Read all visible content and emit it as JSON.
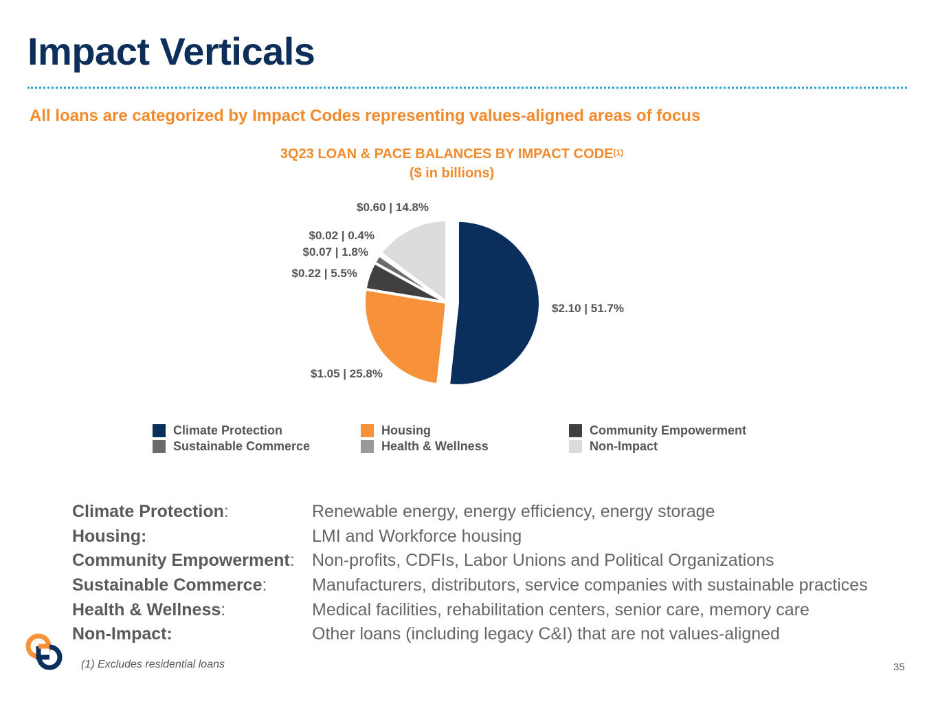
{
  "slide": {
    "title": "Impact Verticals",
    "subtitle": "All loans are categorized by Impact Codes representing values-aligned areas of focus",
    "chart_title_main": "3Q23 LOAN & PACE BALANCES BY IMPACT CODE",
    "chart_title_sup": "(1)",
    "chart_title_units": "($ in billions)",
    "footnote": "(1) Excludes residential loans",
    "page_number": "35"
  },
  "chart_data": {
    "type": "pie",
    "title": "3Q23 LOAN & PACE BALANCES BY IMPACT CODE",
    "subtitle": "($ in billions)",
    "unit": "$ billions",
    "slices": [
      {
        "name": "Climate Protection",
        "value": 2.1,
        "percent": 51.7,
        "label": "$2.10  |  51.7%",
        "color": "#0b2f5c",
        "exploded": true
      },
      {
        "name": "Housing",
        "value": 1.05,
        "percent": 25.8,
        "label": "$1.05  |  25.8%",
        "color": "#f7923a",
        "exploded": false
      },
      {
        "name": "Community Empowerment",
        "value": 0.22,
        "percent": 5.5,
        "label": "$0.22  |  5.5%",
        "color": "#404040",
        "exploded": false
      },
      {
        "name": "Sustainable Commerce",
        "value": 0.07,
        "percent": 1.8,
        "label": "$0.07  |  1.8%",
        "color": "#6b6b6b",
        "exploded": false
      },
      {
        "name": "Health & Wellness",
        "value": 0.02,
        "percent": 0.4,
        "label": "$0.02  |  0.4%",
        "color": "#9a9a9a",
        "exploded": false
      },
      {
        "name": "Non-Impact",
        "value": 0.6,
        "percent": 14.8,
        "label": "$0.60  |  14.8%",
        "color": "#dcdcdc",
        "exploded": false
      }
    ],
    "legend": {
      "placement": "bottom",
      "entries": [
        {
          "label": "Climate Protection",
          "color": "#0b2f5c"
        },
        {
          "label": "Housing",
          "color": "#f7923a"
        },
        {
          "label": "Community Empowerment",
          "color": "#404040"
        },
        {
          "label": "Sustainable Commerce",
          "color": "#6b6b6b"
        },
        {
          "label": "Health & Wellness",
          "color": "#9a9a9a"
        },
        {
          "label": "Non-Impact",
          "color": "#dcdcdc"
        }
      ]
    }
  },
  "definitions": [
    {
      "term": "Climate Protection",
      "sep": ":",
      "desc": "Renewable energy, energy efficiency, energy storage"
    },
    {
      "term": "Housing:",
      "sep": "",
      "desc": "LMI and Workforce housing"
    },
    {
      "term": "Community Empowerment",
      "sep": ":",
      "desc": "Non-profits, CDFIs, Labor Unions and Political Organizations"
    },
    {
      "term": "Sustainable Commerce",
      "sep": ":",
      "desc": "Manufacturers, distributors, service companies with sustainable practices"
    },
    {
      "term": "Health & Wellness",
      "sep": ":",
      "desc": "Medical facilities, rehabilitation centers, senior care, memory care"
    },
    {
      "term": "Non-Impact:",
      "sep": "",
      "desc": "Other loans (including legacy C&I) that are not values-aligned"
    }
  ],
  "colors": {
    "title": "#0b2e5a",
    "accent_orange": "#f28a2c",
    "divider_blue": "#29a3d6"
  },
  "logo_icon": "bank-logo-icon"
}
